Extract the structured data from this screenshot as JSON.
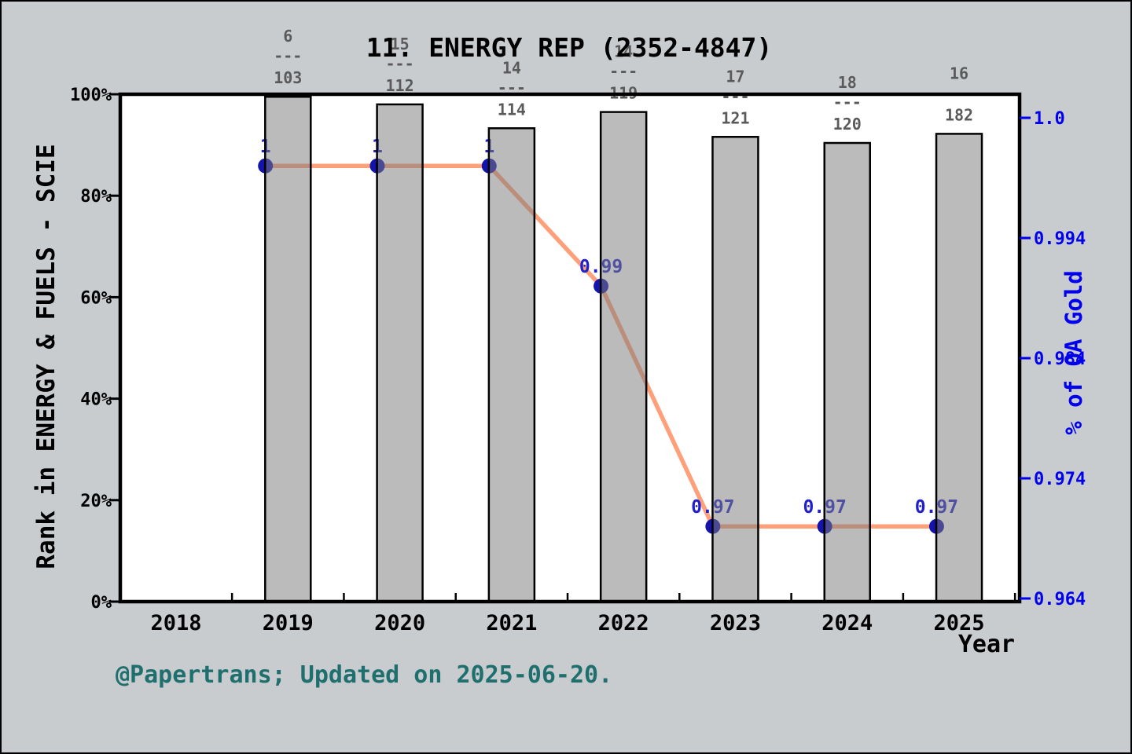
{
  "window": {
    "background": "#c9cccf",
    "plot_background": "#ffffff"
  },
  "chart_data": {
    "type": "bar+line-dual-axis",
    "title": "11. ENERGY REP (2352-4847)",
    "xlabel": "Year",
    "ylabel_left": "Rank in ENERGY & FUELS - SCIE",
    "ylabel_right": "% of OA Gold",
    "x_ticks": [
      "2018",
      "2019",
      "2020",
      "2021",
      "2022",
      "2023",
      "2024",
      "2025"
    ],
    "left_axis": {
      "ticks": [
        "0%",
        "20%",
        "40%",
        "60%",
        "80%",
        "100%"
      ],
      "tick_values": [
        0,
        20,
        40,
        60,
        80,
        100
      ],
      "range": [
        0,
        100
      ],
      "color": "#000000"
    },
    "right_axis": {
      "ticks": [
        "1.0",
        "0.994",
        "0.984",
        "0.974",
        "0.964"
      ],
      "color": "#0000ee"
    },
    "bars": {
      "name": "Rank in ENERGY & FUELS - SCIE",
      "years": [
        2019,
        2020,
        2021,
        2022,
        2023,
        2024,
        2025
      ],
      "rank_percent": [
        99.5,
        98.0,
        93.3,
        96.5,
        91.6,
        90.4,
        92.2
      ],
      "rank_fractions": [
        {
          "rank": "6",
          "total": "103"
        },
        {
          "rank": "15",
          "total": "112"
        },
        {
          "rank": "14",
          "total": "114"
        },
        {
          "rank": "14",
          "total": "119"
        },
        {
          "rank": "17",
          "total": "121"
        },
        {
          "rank": "18",
          "total": "120"
        },
        {
          "rank": "16",
          "total": "182"
        }
      ],
      "fraction_divider": "---",
      "fill_color": "#7d7d7d",
      "edge_color": "#000000",
      "label_color": "#5a5a5a"
    },
    "line": {
      "name": "% of OA Gold",
      "years": [
        2019,
        2020,
        2021,
        2022,
        2023,
        2024,
        2025
      ],
      "values": [
        1.0,
        1.0,
        1.0,
        0.99,
        0.97,
        0.97,
        0.97
      ],
      "point_labels": [
        "1",
        "1",
        "1",
        "0.99",
        "0.97",
        "0.97",
        "0.97"
      ],
      "color": "#ffa07a",
      "marker_color": "#1414ac",
      "label_color": "#2020cc"
    },
    "caption": "@Papertrans; Updated on 2025-06-20.",
    "caption_color": "#1f6f6f"
  }
}
